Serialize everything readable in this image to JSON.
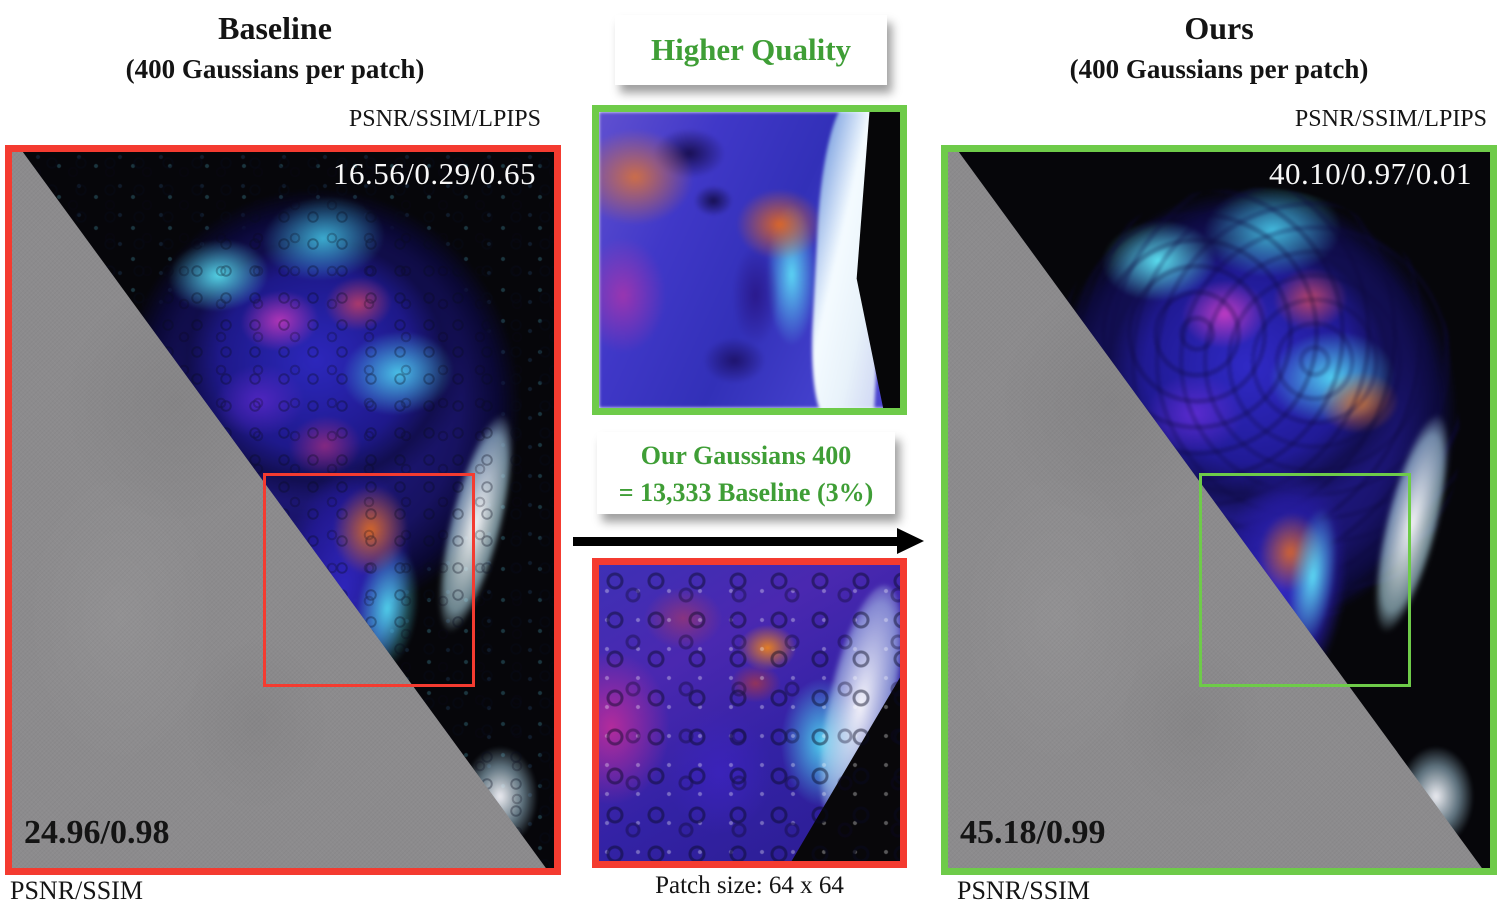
{
  "left_panel": {
    "title": "Baseline",
    "subtitle": "(400 Gaussians per patch)",
    "metrics_header": "PSNR/SSIM/LPIPS",
    "psnr_ssim_lpips": "16.56/0.29/0.65",
    "psnr_ssim": "24.96/0.98",
    "footer_label": "PSNR/SSIM"
  },
  "right_panel": {
    "title": "Ours",
    "subtitle": "(400 Gaussians per patch)",
    "metrics_header": "PSNR/SSIM/LPIPS",
    "psnr_ssim_lpips": "40.10/0.97/0.01",
    "psnr_ssim": "45.18/0.99",
    "footer_label": "PSNR/SSIM"
  },
  "center": {
    "quality_badge": "Higher Quality",
    "equivalence_line1": "Our Gaussians 400",
    "equivalence_line2": "= 13,333 Baseline (3%)",
    "patch_caption": "Patch size: 64 x 64"
  },
  "colors": {
    "baseline_border_red": "#f43b30",
    "ours_border_green": "#6ecb49",
    "highlight_text_green": "#3f9e36",
    "residual_gray": "#8c8b8d"
  }
}
